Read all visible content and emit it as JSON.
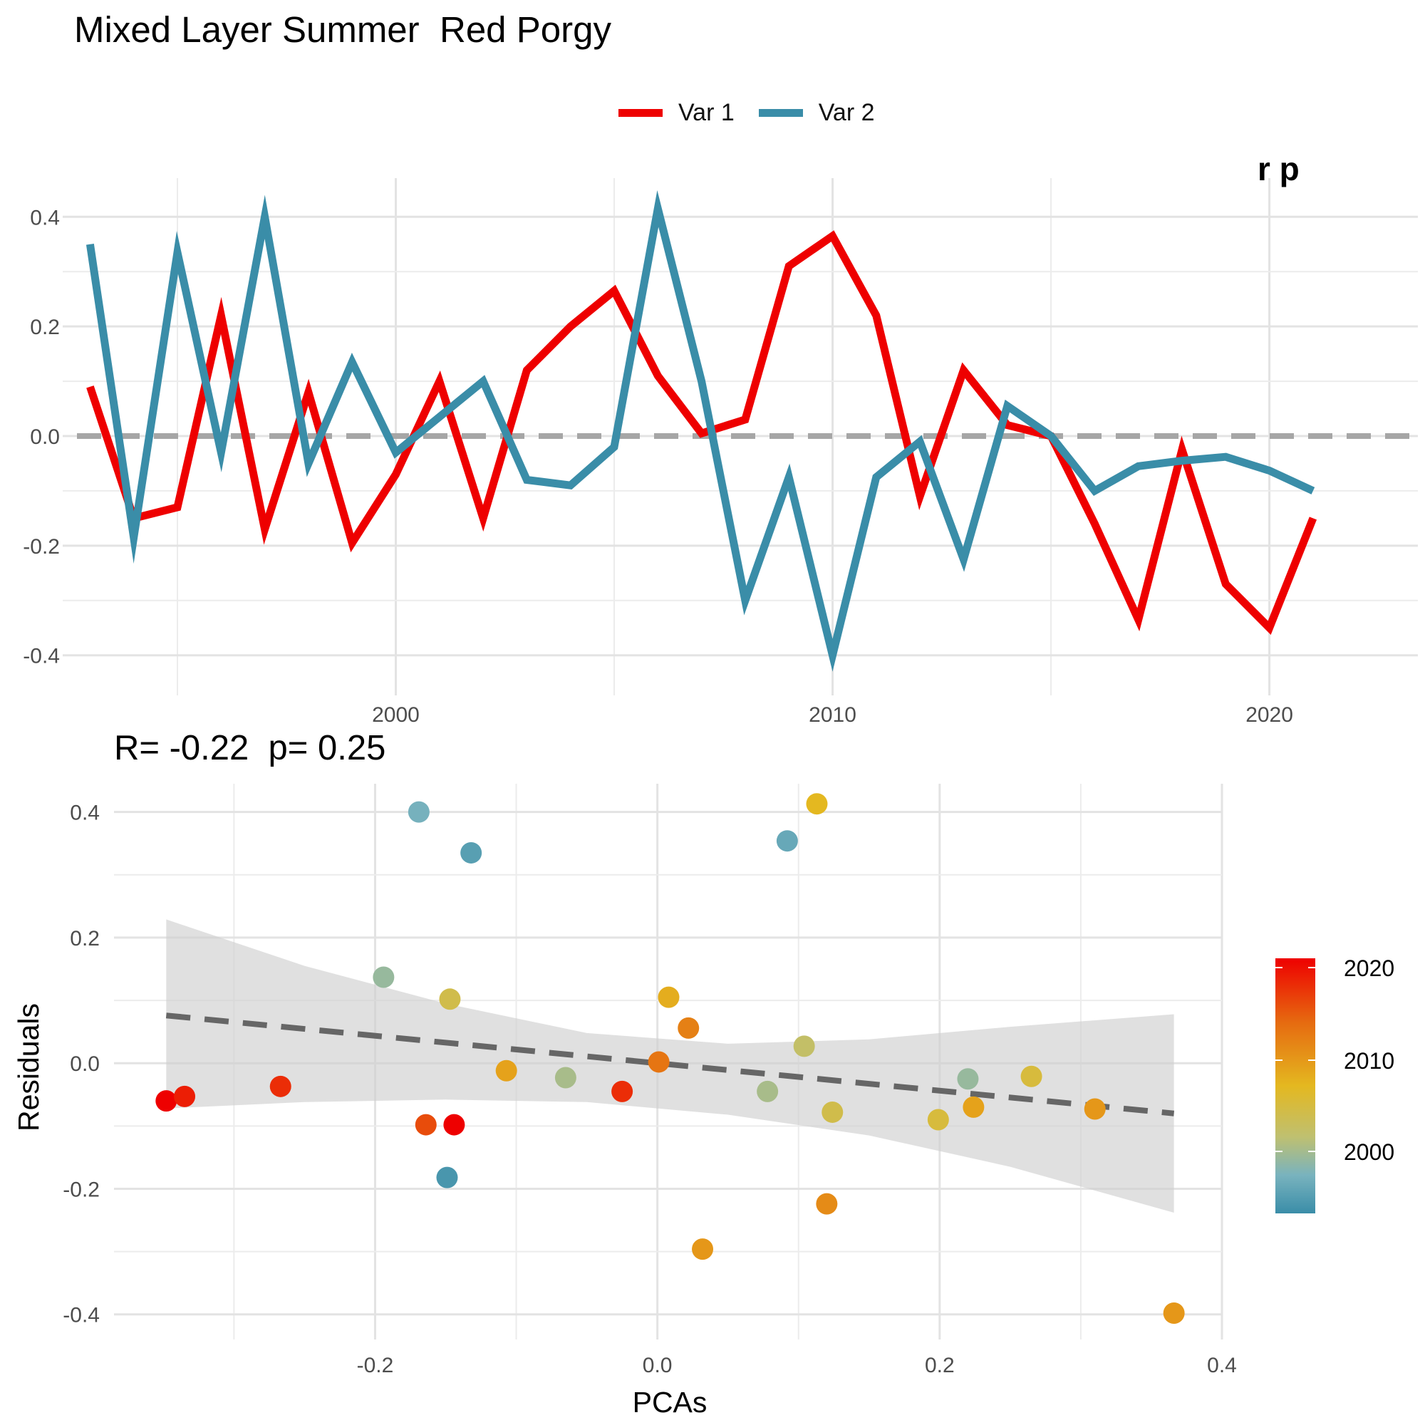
{
  "title": "Mixed Layer Summer  Red Porgy",
  "legend": {
    "items": [
      {
        "label": "Var 1",
        "color": "#EE0000"
      },
      {
        "label": "Var 2",
        "color": "#3A8DA8"
      }
    ]
  },
  "top_clipped_text": "r p",
  "scatter_title": "R= -0.22  p= 0.25",
  "colorbar": {
    "labels": [
      "2020",
      "2010",
      "2000"
    ],
    "gradient": [
      "#EE0000",
      "#E4B820",
      "#3A8DA8"
    ]
  },
  "chart_data": [
    {
      "type": "line",
      "x": [
        1993,
        1994,
        1995,
        1996,
        1997,
        1998,
        1999,
        2000,
        2001,
        2002,
        2003,
        2004,
        2005,
        2006,
        2007,
        2008,
        2009,
        2010,
        2011,
        2012,
        2013,
        2014,
        2015,
        2016,
        2017,
        2018,
        2019,
        2020,
        2021
      ],
      "series": [
        {
          "name": "Var 1",
          "color": "#EE0000",
          "values": [
            0.09,
            -0.15,
            -0.13,
            0.22,
            -0.17,
            0.08,
            -0.195,
            -0.07,
            0.1,
            -0.15,
            0.12,
            0.2,
            0.265,
            0.11,
            0.005,
            0.03,
            0.31,
            0.365,
            0.22,
            -0.11,
            0.12,
            0.02,
            0.0,
            -0.16,
            -0.335,
            -0.025,
            -0.27,
            -0.35,
            -0.15
          ]
        },
        {
          "name": "Var 2",
          "color": "#3A8DA8",
          "values": [
            0.35,
            -0.185,
            0.335,
            -0.03,
            0.4,
            -0.05,
            0.135,
            -0.03,
            0.035,
            0.1,
            -0.08,
            -0.09,
            -0.02,
            0.415,
            0.1,
            -0.3,
            -0.075,
            -0.4,
            -0.075,
            -0.01,
            -0.225,
            0.055,
            0.0,
            -0.1,
            -0.055,
            -0.045,
            -0.038,
            -0.063,
            -0.1
          ]
        }
      ],
      "xticks": [
        "2000",
        "2010",
        "2020"
      ],
      "yticks": [
        "0.4",
        "0.2",
        "0.0",
        "-0.2",
        "-0.4"
      ],
      "xlim": [
        1992.7,
        2023.4
      ],
      "ylim": [
        -0.455,
        0.455
      ],
      "reference_line": 0,
      "grid": true
    },
    {
      "type": "scatter",
      "xlabel": "PCAs",
      "ylabel": "Residuals",
      "xticks": [
        "-0.2",
        "0.0",
        "0.2",
        "0.4"
      ],
      "yticks": [
        "0.4",
        "0.2",
        "0.0",
        "-0.2",
        "-0.4"
      ],
      "xlim": [
        -0.385,
        0.4
      ],
      "ylim": [
        -0.44,
        0.445
      ],
      "grid": true,
      "points": [
        {
          "x": -0.348,
          "y": -0.06,
          "year": 2021
        },
        {
          "x": -0.335,
          "y": -0.053,
          "year": 2019
        },
        {
          "x": -0.267,
          "y": -0.037,
          "year": 2018
        },
        {
          "x": -0.194,
          "y": 0.137,
          "year": 1999
        },
        {
          "x": -0.169,
          "y": 0.4,
          "year": 1997
        },
        {
          "x": -0.164,
          "y": -0.098,
          "year": 2016
        },
        {
          "x": -0.147,
          "y": 0.102,
          "year": 2004
        },
        {
          "x": -0.144,
          "y": -0.098,
          "year": 2021
        },
        {
          "x": -0.149,
          "y": -0.182,
          "year": 1994
        },
        {
          "x": -0.132,
          "y": 0.335,
          "year": 1995
        },
        {
          "x": -0.107,
          "y": -0.012,
          "year": 2009
        },
        {
          "x": -0.065,
          "y": -0.023,
          "year": 2000
        },
        {
          "x": -0.025,
          "y": -0.045,
          "year": 2018
        },
        {
          "x": 0.001,
          "y": 0.002,
          "year": 2013
        },
        {
          "x": 0.008,
          "y": 0.105,
          "year": 2008
        },
        {
          "x": 0.022,
          "y": 0.056,
          "year": 2012
        },
        {
          "x": 0.032,
          "y": -0.296,
          "year": 2010
        },
        {
          "x": 0.078,
          "y": -0.045,
          "year": 2000
        },
        {
          "x": 0.092,
          "y": 0.354,
          "year": 1996
        },
        {
          "x": 0.113,
          "y": 0.413,
          "year": 2007
        },
        {
          "x": 0.104,
          "y": 0.027,
          "year": 2002
        },
        {
          "x": 0.12,
          "y": -0.224,
          "year": 2011
        },
        {
          "x": 0.124,
          "y": -0.078,
          "year": 2004
        },
        {
          "x": 0.199,
          "y": -0.09,
          "year": 2005
        },
        {
          "x": 0.22,
          "y": -0.025,
          "year": 1999
        },
        {
          "x": 0.224,
          "y": -0.07,
          "year": 2009
        },
        {
          "x": 0.265,
          "y": -0.021,
          "year": 2005
        },
        {
          "x": 0.31,
          "y": -0.073,
          "year": 2010
        },
        {
          "x": 0.366,
          "y": -0.398,
          "year": 2010
        }
      ],
      "trend": {
        "x": [
          -0.348,
          0.366
        ],
        "y": [
          0.076,
          -0.08
        ]
      },
      "confidence_band": {
        "x": [
          -0.348,
          -0.25,
          -0.15,
          -0.05,
          0.05,
          0.15,
          0.25,
          0.366
        ],
        "upper": [
          0.229,
          0.155,
          0.095,
          0.048,
          0.031,
          0.038,
          0.058,
          0.078
        ],
        "lower": [
          -0.072,
          -0.062,
          -0.058,
          -0.062,
          -0.082,
          -0.115,
          -0.165,
          -0.238
        ]
      },
      "color_scale": {
        "min_year": 1993,
        "max_year": 2021
      }
    }
  ]
}
